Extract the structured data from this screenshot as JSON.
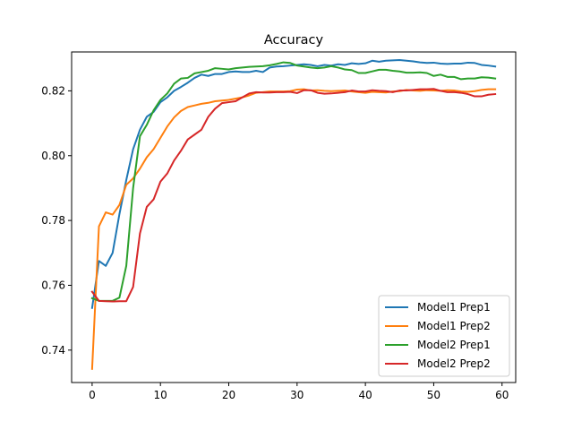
{
  "chart_data": {
    "type": "line",
    "title": "Accuracy",
    "xlabel": "",
    "ylabel": "",
    "xlim": [
      -3,
      62
    ],
    "ylim": [
      0.73,
      0.832
    ],
    "x_ticks": [
      0,
      10,
      20,
      30,
      40,
      50,
      60
    ],
    "y_ticks": [
      0.74,
      0.76,
      0.78,
      0.8,
      0.82
    ],
    "y_tick_labels": [
      "0.74",
      "0.76",
      "0.78",
      "0.80",
      "0.82"
    ],
    "grid": false,
    "legend_position": "lower-right",
    "x": [
      0,
      1,
      2,
      3,
      4,
      5,
      6,
      7,
      8,
      9,
      10,
      11,
      12,
      13,
      14,
      15,
      16,
      17,
      18,
      19,
      20,
      21,
      22,
      23,
      24,
      25,
      26,
      27,
      28,
      29,
      30,
      31,
      32,
      33,
      34,
      35,
      36,
      37,
      38,
      39,
      40,
      41,
      42,
      43,
      44,
      45,
      46,
      47,
      48,
      49,
      50,
      51,
      52,
      53,
      54,
      55,
      56,
      57,
      58,
      59
    ],
    "series": [
      {
        "name": "Model1 Prep1",
        "color": "#1f77b4",
        "values": [
          0.753,
          0.7675,
          0.766,
          0.77,
          0.782,
          0.7925,
          0.802,
          0.808,
          0.812,
          0.8135,
          0.8165,
          0.818,
          0.82,
          0.8212,
          0.8225,
          0.824,
          0.825,
          0.8246,
          0.8252,
          0.8252,
          0.8258,
          0.826,
          0.8258,
          0.8258,
          0.8262,
          0.8258,
          0.8272,
          0.8275,
          0.8276,
          0.8278,
          0.828,
          0.8282,
          0.828,
          0.8276,
          0.828,
          0.8278,
          0.8282,
          0.828,
          0.8285,
          0.8283,
          0.8285,
          0.8293,
          0.829,
          0.8293,
          0.8294,
          0.8295,
          0.8293,
          0.8291,
          0.8288,
          0.8286,
          0.8287,
          0.8284,
          0.8283,
          0.8284,
          0.8284,
          0.8287,
          0.8286,
          0.828,
          0.8278,
          0.8275
        ]
      },
      {
        "name": "Model1 Prep2",
        "color": "#ff7f0e",
        "values": [
          0.7342,
          0.7782,
          0.7825,
          0.7818,
          0.7848,
          0.791,
          0.793,
          0.796,
          0.7995,
          0.802,
          0.8055,
          0.809,
          0.8118,
          0.8138,
          0.815,
          0.8155,
          0.816,
          0.8163,
          0.8168,
          0.817,
          0.8172,
          0.8176,
          0.818,
          0.8186,
          0.8194,
          0.8196,
          0.8198,
          0.8198,
          0.8198,
          0.8199,
          0.8204,
          0.8205,
          0.8201,
          0.8202,
          0.82,
          0.8199,
          0.82,
          0.8201,
          0.8198,
          0.8196,
          0.8194,
          0.8197,
          0.8196,
          0.8195,
          0.8198,
          0.8199,
          0.8203,
          0.8201,
          0.82,
          0.8202,
          0.8201,
          0.82,
          0.8202,
          0.8201,
          0.8198,
          0.8197,
          0.8199,
          0.8203,
          0.8205,
          0.8205
        ]
      },
      {
        "name": "Model2 Prep1",
        "color": "#2ca02c",
        "values": [
          0.756,
          0.7552,
          0.7552,
          0.7552,
          0.7562,
          0.766,
          0.79,
          0.806,
          0.8095,
          0.814,
          0.8172,
          0.8192,
          0.8222,
          0.8238,
          0.824,
          0.8254,
          0.8258,
          0.8262,
          0.827,
          0.8268,
          0.8266,
          0.827,
          0.8272,
          0.8274,
          0.8275,
          0.8276,
          0.8279,
          0.8283,
          0.8288,
          0.8286,
          0.8278,
          0.8275,
          0.8272,
          0.827,
          0.8272,
          0.8276,
          0.8272,
          0.8266,
          0.8264,
          0.8255,
          0.8255,
          0.826,
          0.8265,
          0.8265,
          0.8262,
          0.826,
          0.8256,
          0.8256,
          0.8257,
          0.8255,
          0.8246,
          0.825,
          0.8243,
          0.8243,
          0.8236,
          0.8238,
          0.8238,
          0.8242,
          0.8241,
          0.8238
        ]
      },
      {
        "name": "Model2 Prep2",
        "color": "#d62728",
        "values": [
          0.758,
          0.7552,
          0.7551,
          0.755,
          0.7551,
          0.7551,
          0.7595,
          0.776,
          0.7842,
          0.7865,
          0.792,
          0.7945,
          0.7985,
          0.8015,
          0.805,
          0.8065,
          0.808,
          0.812,
          0.8145,
          0.8162,
          0.8165,
          0.8168,
          0.818,
          0.8192,
          0.8196,
          0.8195,
          0.8195,
          0.8196,
          0.8196,
          0.8197,
          0.8193,
          0.8202,
          0.8202,
          0.8194,
          0.8191,
          0.8192,
          0.8194,
          0.8196,
          0.8201,
          0.8198,
          0.8198,
          0.8202,
          0.82,
          0.8199,
          0.8196,
          0.8201,
          0.8201,
          0.8203,
          0.8205,
          0.8205,
          0.8206,
          0.82,
          0.8196,
          0.8196,
          0.8194,
          0.819,
          0.8183,
          0.8183,
          0.8188,
          0.819
        ]
      }
    ]
  }
}
